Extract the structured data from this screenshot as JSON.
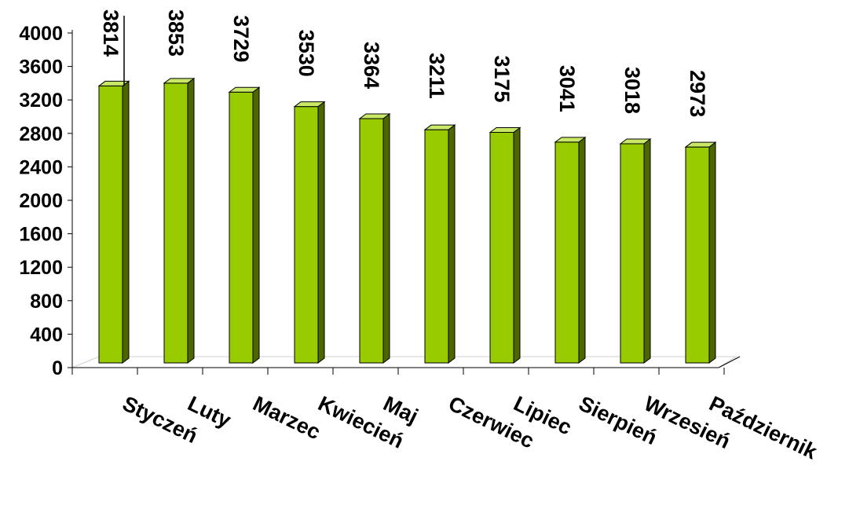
{
  "chart_data": {
    "type": "bar",
    "categories": [
      "Styczeń",
      "Luty",
      "Marzec",
      "Kwiecień",
      "Maj",
      "Czerwiec",
      "Lipiec",
      "Sierpień",
      "Wrzesień",
      "Październik"
    ],
    "values": [
      3814,
      3853,
      3729,
      3530,
      3364,
      3211,
      3175,
      3041,
      3018,
      2973
    ],
    "data_labels": [
      "3814",
      "3853",
      "3729",
      "3530",
      "3364",
      "3211",
      "3175",
      "3041",
      "3018",
      "2973"
    ],
    "yticks": [
      "0",
      "400",
      "800",
      "1200",
      "1600",
      "2000",
      "2400",
      "2800",
      "3200",
      "3600",
      "4000"
    ],
    "ylim": [
      0,
      4000
    ],
    "title": "",
    "xlabel": "",
    "ylabel": "",
    "grid": false,
    "legend": "none",
    "colors": {
      "bar_front": "#99cc00",
      "bar_side": "#4d6600",
      "bar_top": "#c8e866",
      "outline": "#000000"
    }
  }
}
